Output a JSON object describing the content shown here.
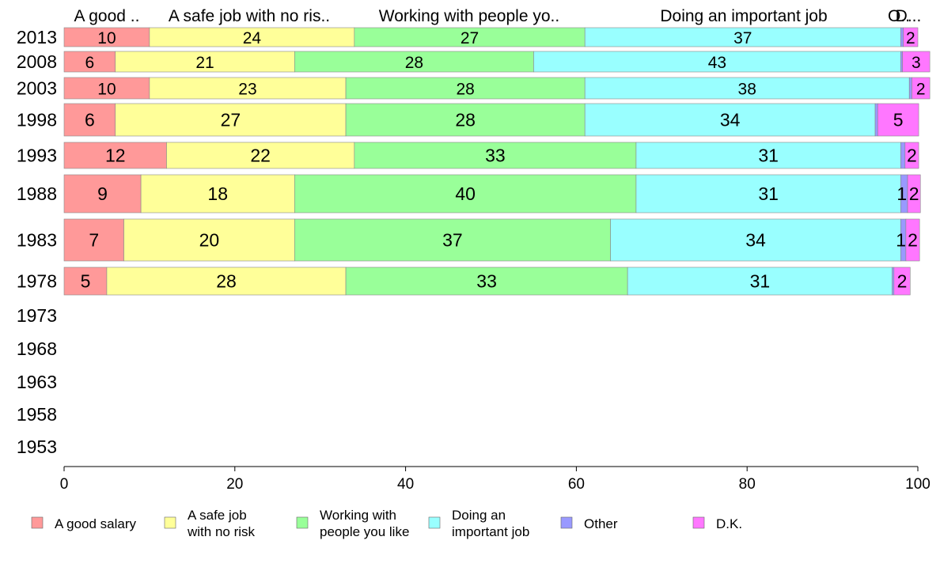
{
  "chart_data": {
    "type": "bar",
    "orientation": "horizontal",
    "stacked": true,
    "categories": [
      "2013",
      "2008",
      "2003",
      "1998",
      "1993",
      "1988",
      "1983",
      "1978",
      "1973",
      "1968",
      "1963",
      "1958",
      "1953"
    ],
    "series": [
      {
        "name": "A good salary",
        "color": "#ff9999",
        "values": [
          10,
          6,
          10,
          6,
          12,
          9,
          7,
          5,
          null,
          null,
          null,
          null,
          null
        ],
        "labels": [
          "10",
          "6",
          "10",
          "6",
          "12",
          "9",
          "7",
          "5",
          "",
          "",
          "",
          "",
          ""
        ]
      },
      {
        "name": "A safe job with no risk",
        "color": "#ffff99",
        "values": [
          24,
          21,
          23,
          27,
          22,
          18,
          20,
          28,
          null,
          null,
          null,
          null,
          null
        ],
        "labels": [
          "24",
          "21",
          "23",
          "27",
          "22",
          "18",
          "20",
          "28",
          "",
          "",
          "",
          "",
          ""
        ]
      },
      {
        "name": "Working with people you like",
        "color": "#99ff99",
        "values": [
          27,
          28,
          28,
          28,
          33,
          40,
          37,
          33,
          null,
          null,
          null,
          null,
          null
        ],
        "labels": [
          "27",
          "28",
          "28",
          "28",
          "33",
          "40",
          "37",
          "33",
          "",
          "",
          "",
          "",
          ""
        ]
      },
      {
        "name": "Doing an important job",
        "color": "#99ffff",
        "values": [
          37,
          43,
          38,
          34,
          31,
          31,
          34,
          31,
          null,
          null,
          null,
          null,
          null
        ],
        "labels": [
          "37",
          "43",
          "38",
          "34",
          "31",
          "31",
          "34",
          "31",
          "",
          "",
          "",
          "",
          ""
        ]
      },
      {
        "name": "Other",
        "color": "#9999ff",
        "values": [
          0.3,
          0.2,
          0.3,
          0.3,
          0.5,
          0.8,
          0.6,
          0.2,
          null,
          null,
          null,
          null,
          null
        ],
        "labels": [
          "",
          "",
          "",
          "",
          "",
          "1",
          "1",
          "",
          "",
          "",
          "",
          "",
          ""
        ]
      },
      {
        "name": "D.K.",
        "color": "#ff77ff",
        "values": [
          1.7,
          3.2,
          2.1,
          4.8,
          1.6,
          1.5,
          1.6,
          1.9,
          null,
          null,
          null,
          null,
          null
        ],
        "labels": [
          "2",
          "3",
          "2",
          "5",
          "2",
          "2",
          "2",
          "2",
          "",
          "",
          "",
          "",
          ""
        ]
      }
    ],
    "header_labels": [
      "A good ..",
      "A safe job with no ris..",
      "Working with people yo..",
      "Doing an important job",
      "O..",
      "D..."
    ],
    "xlim": [
      0,
      100
    ],
    "xticks": [
      "0",
      "20",
      "40",
      "60",
      "80",
      "100"
    ],
    "legend": {
      "placement": "bottom",
      "entries": [
        {
          "lines": [
            "A good salary"
          ],
          "color": "#ff9999"
        },
        {
          "lines": [
            "A safe job",
            "with no risk"
          ],
          "color": "#ffff99"
        },
        {
          "lines": [
            "Working with",
            "people you like"
          ],
          "color": "#99ff99"
        },
        {
          "lines": [
            "Doing an",
            "important job"
          ],
          "color": "#99ffff"
        },
        {
          "lines": [
            "Other"
          ],
          "color": "#9999ff"
        },
        {
          "lines": [
            "D.K."
          ],
          "color": "#ff77ff"
        }
      ]
    },
    "grid": false
  }
}
